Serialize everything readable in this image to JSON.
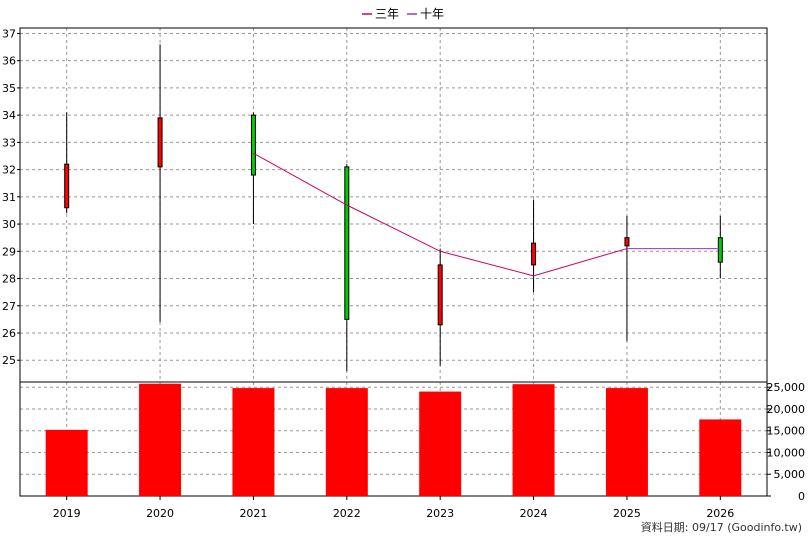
{
  "chart_data": [
    {
      "type": "candlestick",
      "years": [
        "2019",
        "2020",
        "2021",
        "2022",
        "2023",
        "2024",
        "2025",
        "2026"
      ],
      "ohlc": [
        {
          "open": 30.6,
          "high": 34.1,
          "low": 30.4,
          "close": 32.2
        },
        {
          "open": 32.1,
          "high": 36.6,
          "low": 26.4,
          "close": 33.9
        },
        {
          "open": 34.0,
          "high": 34.1,
          "low": 30.0,
          "close": 31.8
        },
        {
          "open": 32.1,
          "high": 32.2,
          "low": 24.6,
          "close": 26.5
        },
        {
          "open": 26.3,
          "high": 29.1,
          "low": 24.8,
          "close": 28.5
        },
        {
          "open": 28.5,
          "high": 30.9,
          "low": 27.5,
          "close": 29.3
        },
        {
          "open": 29.2,
          "high": 30.3,
          "low": 25.7,
          "close": 29.5
        },
        {
          "open": 29.5,
          "high": 30.3,
          "low": 28.0,
          "close": 28.6
        }
      ],
      "ma_series": [
        {
          "name": "三年",
          "color": "#cc0066",
          "values": [
            null,
            null,
            32.6,
            30.7,
            29.0,
            28.1,
            29.1,
            null
          ]
        },
        {
          "name": "十年",
          "color": "#9933cc",
          "values": [
            null,
            null,
            null,
            null,
            null,
            null,
            29.1,
            29.1
          ]
        }
      ],
      "ylim": [
        24.2,
        37.2
      ],
      "yticks": [
        25,
        26,
        27,
        28,
        29,
        30,
        31,
        32,
        33,
        34,
        35,
        36,
        37
      ],
      "up_color": "#ff0000",
      "down_color": "#00cc00",
      "grid": true,
      "legend_position": "top-center"
    },
    {
      "type": "bar",
      "categories": [
        "2019",
        "2020",
        "2021",
        "2022",
        "2023",
        "2024",
        "2025",
        "2026"
      ],
      "values": [
        15200,
        25800,
        24800,
        24800,
        24000,
        25700,
        24800,
        17600
      ],
      "ylim": [
        0,
        26200
      ],
      "yticks": [
        0,
        5000,
        10000,
        15000,
        20000,
        25000
      ],
      "ytick_labels": [
        "0",
        "5,000",
        "10,000",
        "15,000",
        "20,000",
        "25,000"
      ],
      "color": "#ff0000",
      "grid": true
    }
  ],
  "footer": {
    "date_label": "資料日期: 09/17",
    "source": "(Goodinfo.tw)"
  }
}
